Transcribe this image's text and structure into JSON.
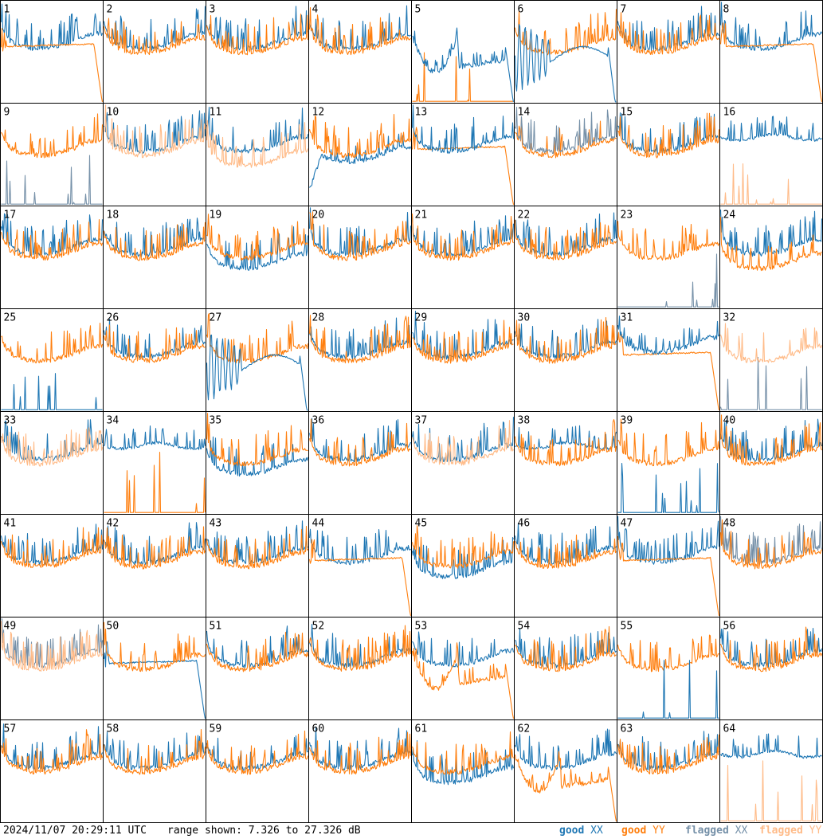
{
  "footer": {
    "timestamp": "2024/11/07 20:29:11 UTC",
    "range": "range shown: 7.326 to 27.326 dB"
  },
  "legend": [
    {
      "word": "good",
      "pol": "XX",
      "color": "#1f77b4"
    },
    {
      "word": "good",
      "pol": "YY",
      "color": "#ff7f0e"
    },
    {
      "word": "flagged",
      "pol": "XX",
      "color": "#7590a8"
    },
    {
      "word": "flagged",
      "pol": "YY",
      "color": "#ffbb88"
    }
  ],
  "chart_data": {
    "type": "line",
    "ylim": [
      7.326,
      27.326
    ],
    "grid_rows": 8,
    "grid_cols": 8,
    "colors": {
      "good_xx": "#1f77b4",
      "good_yy": "#ff7f0e",
      "flagged_xx": "#7590a8",
      "flagged_yy": "#ffbb88"
    },
    "panels": [
      {
        "id": "1",
        "xx": "good",
        "yy": "good",
        "xx_shape": "standard",
        "yy_shape": "rolloff",
        "on_top": "yy"
      },
      {
        "id": "2",
        "xx": "good",
        "yy": "good",
        "xx_shape": "standard",
        "yy_shape": "standard",
        "on_top": "yy"
      },
      {
        "id": "3",
        "xx": "good",
        "yy": "good",
        "xx_shape": "standard",
        "yy_shape": "standard",
        "on_top": "yy"
      },
      {
        "id": "4",
        "xx": "good",
        "yy": "good",
        "xx_shape": "standard",
        "yy_shape": "standard",
        "on_top": "yy"
      },
      {
        "id": "5",
        "xx": "good",
        "yy": "good",
        "xx_shape": "bowl",
        "yy_shape": "dead",
        "on_top": "xx"
      },
      {
        "id": "6",
        "xx": "good",
        "yy": "good",
        "xx_shape": "oscillating",
        "yy_shape": "standard",
        "on_top": "xx"
      },
      {
        "id": "7",
        "xx": "good",
        "yy": "good",
        "xx_shape": "standard",
        "yy_shape": "standard",
        "on_top": "yy"
      },
      {
        "id": "8",
        "xx": "good",
        "yy": "good",
        "xx_shape": "standard",
        "yy_shape": "rolloff",
        "on_top": "yy"
      },
      {
        "id": "9",
        "xx": "flagged",
        "yy": "good",
        "xx_shape": "dead",
        "yy_shape": "standard",
        "on_top": "yy"
      },
      {
        "id": "10",
        "xx": "good",
        "yy": "flagged",
        "xx_shape": "standard",
        "yy_shape": "standard",
        "on_top": "yy"
      },
      {
        "id": "11",
        "xx": "good",
        "yy": "flagged",
        "xx_shape": "standard",
        "yy_shape": "low",
        "on_top": "yy"
      },
      {
        "id": "12",
        "xx": "good",
        "yy": "good",
        "xx_shape": "dip",
        "yy_shape": "standard",
        "on_top": "yy"
      },
      {
        "id": "13",
        "xx": "good",
        "yy": "good",
        "xx_shape": "standard",
        "yy_shape": "rolloff",
        "on_top": "xx"
      },
      {
        "id": "14",
        "xx": "flagged",
        "yy": "good",
        "xx_shape": "standard",
        "yy_shape": "standard",
        "on_top": "xx"
      },
      {
        "id": "15",
        "xx": "good",
        "yy": "good",
        "xx_shape": "standard",
        "yy_shape": "standard",
        "on_top": "yy"
      },
      {
        "id": "16",
        "xx": "good",
        "yy": "flagged",
        "xx_shape": "flat",
        "yy_shape": "dead",
        "on_top": "xx"
      },
      {
        "id": "17",
        "xx": "good",
        "yy": "good",
        "xx_shape": "standard",
        "yy_shape": "standard",
        "on_top": "yy"
      },
      {
        "id": "18",
        "xx": "good",
        "yy": "good",
        "xx_shape": "standard",
        "yy_shape": "standard",
        "on_top": "yy"
      },
      {
        "id": "19",
        "xx": "good",
        "yy": "good",
        "xx_shape": "low",
        "yy_shape": "standard",
        "on_top": "yy"
      },
      {
        "id": "20",
        "xx": "good",
        "yy": "good",
        "xx_shape": "standard",
        "yy_shape": "standard",
        "on_top": "yy"
      },
      {
        "id": "21",
        "xx": "good",
        "yy": "good",
        "xx_shape": "standard",
        "yy_shape": "standard",
        "on_top": "yy"
      },
      {
        "id": "22",
        "xx": "good",
        "yy": "good",
        "xx_shape": "standard",
        "yy_shape": "standard",
        "on_top": "yy"
      },
      {
        "id": "23",
        "xx": "flagged",
        "yy": "good",
        "xx_shape": "dead",
        "yy_shape": "standard",
        "on_top": "yy"
      },
      {
        "id": "24",
        "xx": "good",
        "yy": "good",
        "xx_shape": "standard",
        "yy_shape": "low",
        "on_top": "yy"
      },
      {
        "id": "25",
        "xx": "good",
        "yy": "good",
        "xx_shape": "dead",
        "yy_shape": "standard",
        "on_top": "yy"
      },
      {
        "id": "26",
        "xx": "good",
        "yy": "good",
        "xx_shape": "standard",
        "yy_shape": "standard",
        "on_top": "yy"
      },
      {
        "id": "27",
        "xx": "good",
        "yy": "good",
        "xx_shape": "oscillating",
        "yy_shape": "standard",
        "on_top": "xx"
      },
      {
        "id": "28",
        "xx": "good",
        "yy": "good",
        "xx_shape": "standard",
        "yy_shape": "standard",
        "on_top": "yy"
      },
      {
        "id": "29",
        "xx": "good",
        "yy": "good",
        "xx_shape": "standard",
        "yy_shape": "standard",
        "on_top": "yy"
      },
      {
        "id": "30",
        "xx": "good",
        "yy": "good",
        "xx_shape": "standard",
        "yy_shape": "standard",
        "on_top": "yy"
      },
      {
        "id": "31",
        "xx": "good",
        "yy": "good",
        "xx_shape": "high",
        "yy_shape": "rolloff",
        "on_top": "xx"
      },
      {
        "id": "32",
        "xx": "flagged",
        "yy": "flagged",
        "xx_shape": "dead",
        "yy_shape": "standard",
        "on_top": "yy"
      },
      {
        "id": "33",
        "xx": "good",
        "yy": "flagged",
        "xx_shape": "standard",
        "yy_shape": "standard",
        "on_top": "yy"
      },
      {
        "id": "34",
        "xx": "good",
        "yy": "good",
        "xx_shape": "flat",
        "yy_shape": "dead",
        "on_top": "yy"
      },
      {
        "id": "35",
        "xx": "good",
        "yy": "good",
        "xx_shape": "low",
        "yy_shape": "standard",
        "on_top": "yy"
      },
      {
        "id": "36",
        "xx": "good",
        "yy": "good",
        "xx_shape": "standard",
        "yy_shape": "standard",
        "on_top": "yy"
      },
      {
        "id": "37",
        "xx": "good",
        "yy": "flagged",
        "xx_shape": "standard",
        "yy_shape": "standard",
        "on_top": "yy"
      },
      {
        "id": "38",
        "xx": "good",
        "yy": "good",
        "xx_shape": "flat",
        "yy_shape": "standard",
        "on_top": "yy"
      },
      {
        "id": "39",
        "xx": "good",
        "yy": "good",
        "xx_shape": "dead",
        "yy_shape": "standard",
        "on_top": "yy"
      },
      {
        "id": "40",
        "xx": "good",
        "yy": "good",
        "xx_shape": "standard",
        "yy_shape": "standard",
        "on_top": "yy"
      },
      {
        "id": "41",
        "xx": "good",
        "yy": "good",
        "xx_shape": "standard",
        "yy_shape": "standard",
        "on_top": "yy"
      },
      {
        "id": "42",
        "xx": "good",
        "yy": "good",
        "xx_shape": "standard",
        "yy_shape": "standard",
        "on_top": "yy"
      },
      {
        "id": "43",
        "xx": "good",
        "yy": "good",
        "xx_shape": "standard",
        "yy_shape": "standard",
        "on_top": "yy"
      },
      {
        "id": "44",
        "xx": "good",
        "yy": "good",
        "xx_shape": "standard",
        "yy_shape": "rolloff",
        "on_top": "yy"
      },
      {
        "id": "45",
        "xx": "good",
        "yy": "good",
        "xx_shape": "low",
        "yy_shape": "standard",
        "on_top": "yy"
      },
      {
        "id": "46",
        "xx": "good",
        "yy": "good",
        "xx_shape": "standard",
        "yy_shape": "standard",
        "on_top": "yy"
      },
      {
        "id": "47",
        "xx": "good",
        "yy": "good",
        "xx_shape": "standard",
        "yy_shape": "rolloff",
        "on_top": "yy"
      },
      {
        "id": "48",
        "xx": "flagged",
        "yy": "good",
        "xx_shape": "standard",
        "yy_shape": "standard",
        "on_top": "yy"
      },
      {
        "id": "49",
        "xx": "flagged",
        "yy": "flagged",
        "xx_shape": "standard",
        "yy_shape": "standard",
        "on_top": "yy"
      },
      {
        "id": "50",
        "xx": "good",
        "yy": "good",
        "xx_shape": "rolloff",
        "yy_shape": "standard",
        "on_top": "yy"
      },
      {
        "id": "51",
        "xx": "good",
        "yy": "good",
        "xx_shape": "standard",
        "yy_shape": "standard",
        "on_top": "yy"
      },
      {
        "id": "52",
        "xx": "good",
        "yy": "good",
        "xx_shape": "standard",
        "yy_shape": "standard",
        "on_top": "yy"
      },
      {
        "id": "53",
        "xx": "good",
        "yy": "good",
        "xx_shape": "standard",
        "yy_shape": "bowl",
        "on_top": "yy"
      },
      {
        "id": "54",
        "xx": "good",
        "yy": "good",
        "xx_shape": "standard",
        "yy_shape": "standard",
        "on_top": "yy"
      },
      {
        "id": "55",
        "xx": "good",
        "yy": "good",
        "xx_shape": "dead",
        "yy_shape": "standard",
        "on_top": "xx"
      },
      {
        "id": "56",
        "xx": "good",
        "yy": "good",
        "xx_shape": "standard",
        "yy_shape": "standard",
        "on_top": "yy"
      },
      {
        "id": "57",
        "xx": "good",
        "yy": "good",
        "xx_shape": "standard",
        "yy_shape": "standard",
        "on_top": "yy"
      },
      {
        "id": "58",
        "xx": "good",
        "yy": "good",
        "xx_shape": "standard",
        "yy_shape": "standard",
        "on_top": "yy"
      },
      {
        "id": "59",
        "xx": "good",
        "yy": "good",
        "xx_shape": "standard",
        "yy_shape": "standard",
        "on_top": "yy"
      },
      {
        "id": "60",
        "xx": "good",
        "yy": "good",
        "xx_shape": "standard",
        "yy_shape": "standard",
        "on_top": "yy"
      },
      {
        "id": "61",
        "xx": "good",
        "yy": "good",
        "xx_shape": "low",
        "yy_shape": "standard",
        "on_top": "yy"
      },
      {
        "id": "62",
        "xx": "good",
        "yy": "good",
        "xx_shape": "standard",
        "yy_shape": "bowl",
        "on_top": "yy"
      },
      {
        "id": "63",
        "xx": "good",
        "yy": "good",
        "xx_shape": "standard",
        "yy_shape": "standard",
        "on_top": "yy"
      },
      {
        "id": "64",
        "xx": "good",
        "yy": "flagged",
        "xx_shape": "flat",
        "yy_shape": "dead",
        "on_top": "xx"
      }
    ]
  }
}
